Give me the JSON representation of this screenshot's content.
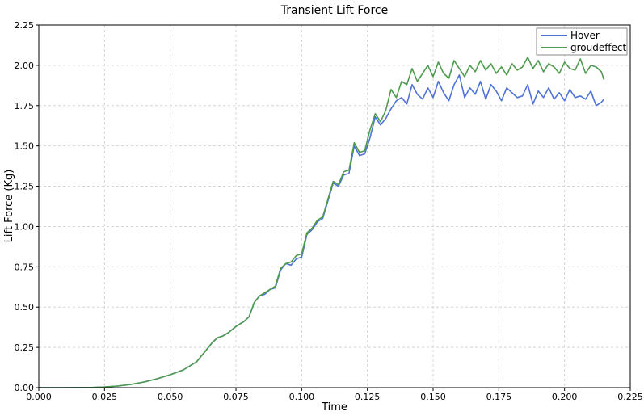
{
  "chart_data": {
    "type": "line",
    "title": "Transient  Lift Force",
    "xlabel": "Time",
    "ylabel": "Lift Force (Kg)",
    "xlim": [
      0,
      0.225
    ],
    "ylim": [
      0,
      2.25
    ],
    "xticks": [
      0.0,
      0.025,
      0.05,
      0.075,
      0.1,
      0.125,
      0.15,
      0.175,
      0.2,
      0.225
    ],
    "xtick_labels": [
      "0.000",
      "0.025",
      "0.050",
      "0.075",
      "0.100",
      "0.125",
      "0.150",
      "0.175",
      "0.200",
      "0.225"
    ],
    "yticks": [
      0.0,
      0.25,
      0.5,
      0.75,
      1.0,
      1.25,
      1.5,
      1.75,
      2.0,
      2.25
    ],
    "ytick_labels": [
      "0.00",
      "0.25",
      "0.50",
      "0.75",
      "1.00",
      "1.25",
      "1.50",
      "1.75",
      "2.00",
      "2.25"
    ],
    "grid": true,
    "legend_position": "top-right",
    "series": [
      {
        "name": "Hover",
        "color": "#4f72d6",
        "x": [
          0.0,
          0.01,
          0.02,
          0.025,
          0.03,
          0.035,
          0.04,
          0.045,
          0.05,
          0.055,
          0.06,
          0.063,
          0.066,
          0.068,
          0.07,
          0.072,
          0.075,
          0.078,
          0.08,
          0.082,
          0.084,
          0.086,
          0.088,
          0.09,
          0.092,
          0.094,
          0.096,
          0.098,
          0.1,
          0.102,
          0.104,
          0.106,
          0.108,
          0.11,
          0.112,
          0.114,
          0.116,
          0.118,
          0.12,
          0.122,
          0.124,
          0.126,
          0.128,
          0.13,
          0.132,
          0.134,
          0.136,
          0.138,
          0.14,
          0.142,
          0.144,
          0.146,
          0.148,
          0.15,
          0.152,
          0.154,
          0.156,
          0.158,
          0.16,
          0.162,
          0.164,
          0.166,
          0.168,
          0.17,
          0.172,
          0.174,
          0.176,
          0.178,
          0.18,
          0.182,
          0.184,
          0.186,
          0.188,
          0.19,
          0.192,
          0.194,
          0.196,
          0.198,
          0.2,
          0.202,
          0.204,
          0.206,
          0.208,
          0.21,
          0.212,
          0.214,
          0.215
        ],
        "values": [
          0.0,
          0.0,
          0.001,
          0.004,
          0.01,
          0.02,
          0.035,
          0.055,
          0.08,
          0.11,
          0.16,
          0.22,
          0.28,
          0.31,
          0.32,
          0.34,
          0.38,
          0.41,
          0.44,
          0.53,
          0.57,
          0.58,
          0.61,
          0.62,
          0.73,
          0.77,
          0.76,
          0.8,
          0.81,
          0.95,
          0.98,
          1.03,
          1.05,
          1.16,
          1.27,
          1.25,
          1.32,
          1.33,
          1.5,
          1.44,
          1.45,
          1.55,
          1.68,
          1.63,
          1.67,
          1.73,
          1.78,
          1.8,
          1.76,
          1.88,
          1.82,
          1.79,
          1.86,
          1.8,
          1.9,
          1.83,
          1.78,
          1.88,
          1.94,
          1.8,
          1.86,
          1.82,
          1.9,
          1.79,
          1.88,
          1.84,
          1.78,
          1.86,
          1.83,
          1.8,
          1.81,
          1.88,
          1.76,
          1.84,
          1.8,
          1.86,
          1.79,
          1.83,
          1.78,
          1.85,
          1.8,
          1.81,
          1.79,
          1.84,
          1.75,
          1.77,
          1.79
        ]
      },
      {
        "name": "groudeffect",
        "color": "#4e9a4e",
        "x": [
          0.0,
          0.01,
          0.02,
          0.025,
          0.03,
          0.035,
          0.04,
          0.045,
          0.05,
          0.055,
          0.06,
          0.063,
          0.066,
          0.068,
          0.07,
          0.072,
          0.075,
          0.078,
          0.08,
          0.082,
          0.084,
          0.086,
          0.088,
          0.09,
          0.092,
          0.094,
          0.096,
          0.098,
          0.1,
          0.102,
          0.104,
          0.106,
          0.108,
          0.11,
          0.112,
          0.114,
          0.116,
          0.118,
          0.12,
          0.122,
          0.124,
          0.126,
          0.128,
          0.13,
          0.132,
          0.134,
          0.136,
          0.138,
          0.14,
          0.142,
          0.144,
          0.146,
          0.148,
          0.15,
          0.152,
          0.154,
          0.156,
          0.158,
          0.16,
          0.162,
          0.164,
          0.166,
          0.168,
          0.17,
          0.172,
          0.174,
          0.176,
          0.178,
          0.18,
          0.182,
          0.184,
          0.186,
          0.188,
          0.19,
          0.192,
          0.194,
          0.196,
          0.198,
          0.2,
          0.202,
          0.204,
          0.206,
          0.208,
          0.21,
          0.212,
          0.214,
          0.215
        ],
        "values": [
          0.0,
          0.0,
          0.001,
          0.004,
          0.01,
          0.02,
          0.035,
          0.055,
          0.08,
          0.11,
          0.16,
          0.22,
          0.28,
          0.31,
          0.32,
          0.34,
          0.38,
          0.41,
          0.44,
          0.53,
          0.57,
          0.59,
          0.61,
          0.63,
          0.74,
          0.77,
          0.78,
          0.82,
          0.83,
          0.96,
          0.99,
          1.04,
          1.06,
          1.17,
          1.28,
          1.26,
          1.34,
          1.35,
          1.52,
          1.46,
          1.47,
          1.6,
          1.7,
          1.65,
          1.72,
          1.85,
          1.8,
          1.9,
          1.88,
          1.98,
          1.9,
          1.95,
          2.0,
          1.93,
          2.02,
          1.95,
          1.92,
          2.03,
          1.98,
          1.93,
          2.0,
          1.96,
          2.03,
          1.97,
          2.01,
          1.95,
          1.99,
          1.94,
          2.01,
          1.97,
          1.99,
          2.05,
          1.98,
          2.03,
          1.96,
          2.01,
          1.99,
          1.95,
          2.02,
          1.98,
          1.97,
          2.04,
          1.95,
          2.0,
          1.99,
          1.96,
          1.91
        ]
      }
    ]
  }
}
